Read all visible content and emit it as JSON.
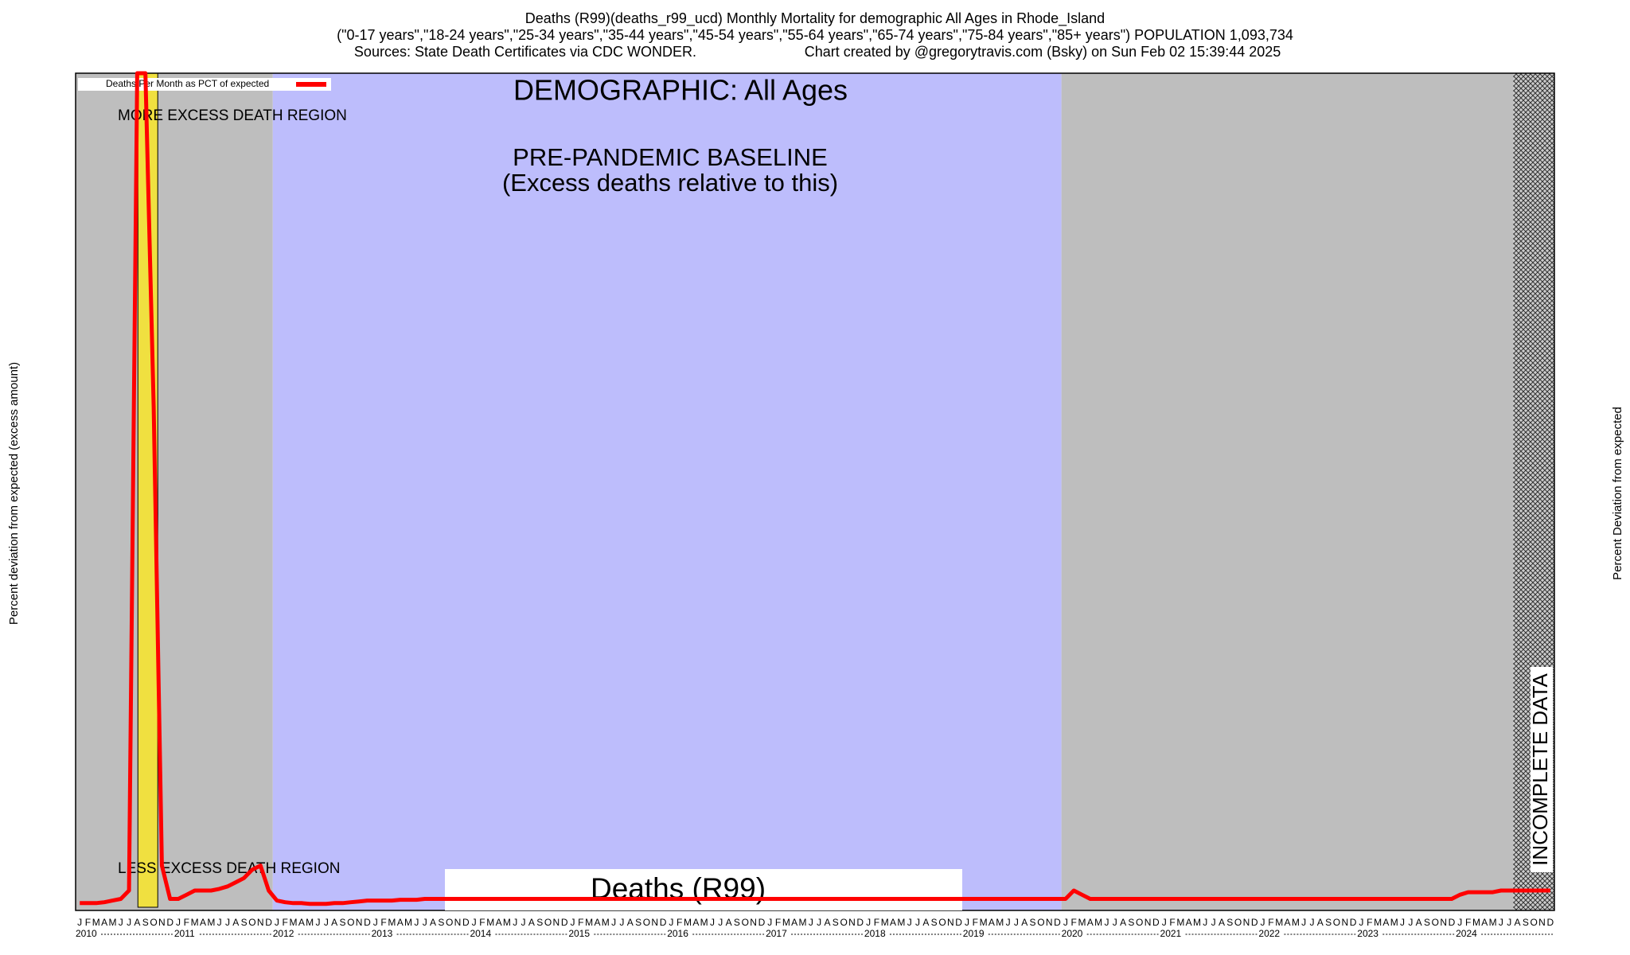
{
  "chart_data": {
    "type": "line",
    "title": "Deaths (R99)(deaths_r99_ucd) Monthly Mortality for demographic All Ages in Rhode_Island",
    "subtitle": "(\"0-17 years\",\"18-24 years\",\"25-34 years\",\"35-44 years\",\"45-54 years\",\"55-64 years\",\"65-74 years\",\"75-84 years\",\"85+ years\") POPULATION 1,093,734",
    "sources": "Sources: State Death Certificates via CDC WONDER.",
    "credit": "Chart created by @gregorytravis.com (Bsky) on Sun Feb 02 15:39:44 2025",
    "ylabel_left": "Percent deviation from expected (excess amount)",
    "ylabel_right": "Percent Deviation from expected",
    "annotations": {
      "demographic": "DEMOGRAPHIC: All Ages",
      "more": "MORE EXCESS DEATH REGION",
      "less": "LESS EXCESS DEATH REGION",
      "baseline": "PRE-PANDEMIC BASELINE",
      "baseline_note": "(Excess deaths relative to this)",
      "cause": "Deaths (R99)",
      "incomplete": "INCOMPLETE DATA"
    },
    "month_letters": [
      "J",
      "F",
      "M",
      "A",
      "M",
      "J",
      "J",
      "A",
      "S",
      "O",
      "N",
      "D"
    ],
    "years": [
      "2010",
      "2011",
      "2012",
      "2013",
      "2014",
      "2015",
      "2016",
      "2017",
      "2018",
      "2019",
      "2020",
      "2021",
      "2022",
      "2023",
      "2024"
    ],
    "ylim": [
      0,
      100
    ],
    "series": [
      {
        "name": "Deaths Per Month as PCT of expected",
        "color": "#ff0000",
        "values": [
          0.5,
          0.5,
          0.5,
          0.6,
          0.8,
          1,
          2,
          100,
          100,
          60,
          5,
          1,
          1,
          1.5,
          2,
          2,
          2,
          2.2,
          2.5,
          3,
          3.5,
          4.5,
          5,
          2,
          0.8,
          0.6,
          0.5,
          0.5,
          0.4,
          0.4,
          0.4,
          0.5,
          0.5,
          0.6,
          0.7,
          0.8,
          0.8,
          0.8,
          0.8,
          0.9,
          0.9,
          0.9,
          1,
          1,
          1,
          1,
          1,
          1,
          1,
          1,
          1,
          1,
          1,
          1,
          1,
          1,
          1,
          1,
          1,
          1,
          1,
          1,
          1,
          1,
          1,
          1,
          1,
          1,
          1,
          1,
          1,
          1,
          1,
          1,
          1,
          1,
          1,
          1,
          1,
          1,
          1,
          1,
          1,
          1,
          1,
          1,
          1,
          1,
          1,
          1,
          1,
          1,
          1,
          1,
          1,
          1,
          1,
          1,
          1,
          1,
          1,
          1,
          1,
          1,
          1,
          1,
          1,
          1,
          1,
          1,
          1,
          1,
          1,
          1,
          1,
          1,
          1,
          1,
          1,
          1,
          1,
          2,
          1.5,
          1,
          1,
          1,
          1,
          1,
          1,
          1,
          1,
          1,
          1,
          1,
          1,
          1,
          1,
          1,
          1,
          1,
          1,
          1,
          1,
          1,
          1,
          1,
          1,
          1,
          1,
          1,
          1,
          1,
          1,
          1,
          1,
          1,
          1,
          1,
          1,
          1,
          1,
          1,
          1,
          1,
          1,
          1,
          1,
          1,
          1.5,
          1.8,
          1.8,
          1.8,
          1.8,
          2,
          2,
          2,
          2,
          2,
          2,
          2
        ]
      }
    ]
  }
}
